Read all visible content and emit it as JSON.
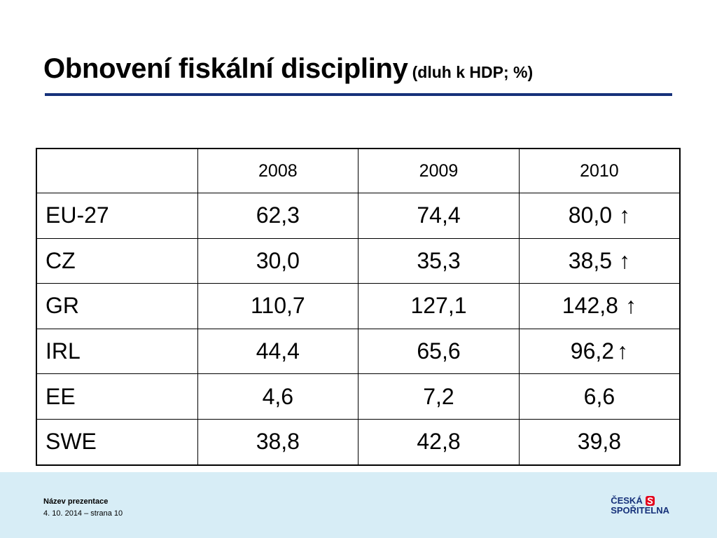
{
  "slide": {
    "title": "Obnovení fiskální discipliny",
    "subtitle": "(dluh k HDP; %)"
  },
  "table": {
    "header": [
      "",
      "2008",
      "2009",
      "2010"
    ],
    "rows": [
      {
        "label": "EU-27",
        "v2008": "62,3",
        "v2009": "74,4",
        "v2010": "80,0",
        "trend": "↑"
      },
      {
        "label": "CZ",
        "v2008": "30,0",
        "v2009": "35,3",
        "v2010": "38,5",
        "trend": "↑"
      },
      {
        "label": "GR",
        "v2008": "110,7",
        "v2009": "127,1",
        "v2010": "142,8",
        "trend": "↑"
      },
      {
        "label": "IRL",
        "v2008": "44,4",
        "v2009": "65,6",
        "v2010": "96,2",
        "trend": "↑"
      },
      {
        "label": "EE",
        "v2008": "4,6",
        "v2009": "7,2",
        "v2010": "6,6",
        "trend": ""
      },
      {
        "label": "SWE",
        "v2008": "38,8",
        "v2009": "42,8",
        "v2010": "39,8",
        "trend": ""
      }
    ]
  },
  "footer": {
    "presentation_name": "Název prezentace",
    "date_page": "4. 10. 2014 – strana 10"
  },
  "logo": {
    "line1": "ČESKÁ",
    "line2": "SPOŘITELNA",
    "color": "#16317a",
    "mark_color": "#e3001b",
    "icon": "ceska-sporitelna-s-mark"
  },
  "colors": {
    "title_rule": "#16317a",
    "footer_bg": "#d7edf6"
  }
}
